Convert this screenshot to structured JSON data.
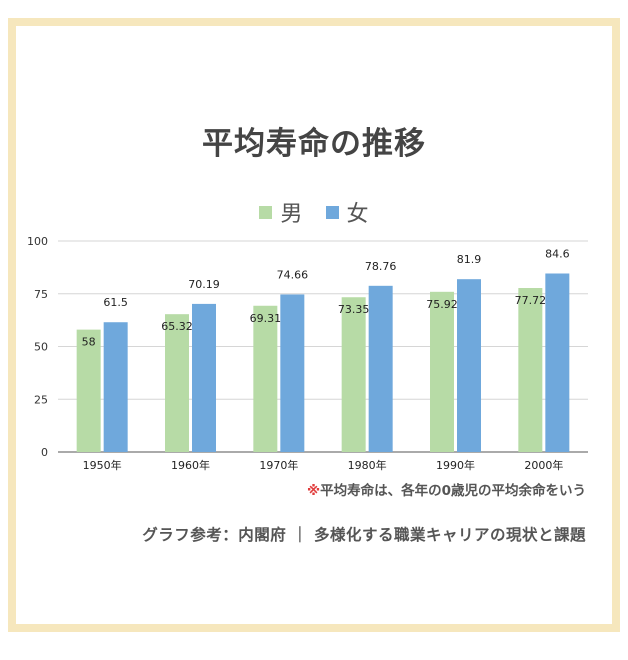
{
  "title": "平均寿命の推移",
  "colors": {
    "male": "#b7dba6",
    "female": "#6fa8dc",
    "frame": "#f6e7bd",
    "note_mark": "#e03c3c"
  },
  "chart_data": {
    "type": "bar",
    "title": "平均寿命の推移",
    "categories": [
      "1950年",
      "1960年",
      "1970年",
      "1980年",
      "1990年",
      "2000年"
    ],
    "series": [
      {
        "name": "男",
        "values": [
          58,
          65.32,
          69.31,
          73.35,
          75.92,
          77.72
        ]
      },
      {
        "name": "女",
        "values": [
          61.5,
          70.19,
          74.66,
          78.76,
          81.9,
          84.6
        ]
      }
    ],
    "y_ticks": [
      0,
      25,
      50,
      75,
      100
    ],
    "ylim": [
      0,
      100
    ],
    "grid": true,
    "legend_position": "top"
  },
  "note": {
    "mark": "※",
    "text": "平均寿命は、各年の0歳児の平均余命をいう"
  },
  "source": "グラフ参考：内閣府 ｜ 多様化する職業キャリアの現状と課題"
}
